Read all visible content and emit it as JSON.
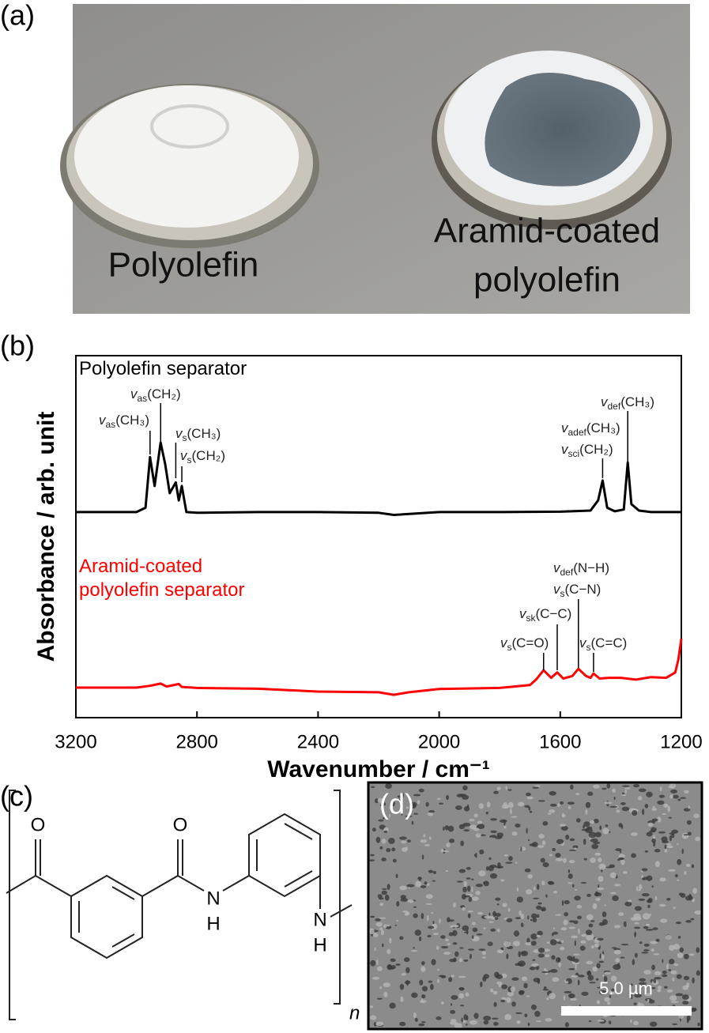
{
  "panel_a": {
    "label": "(a)",
    "captions": [
      "Polyolefin",
      "Aramid-coated",
      "polyolefin"
    ]
  },
  "chart_data": {
    "type": "line",
    "panel_label": "(b)",
    "xlabel": "Wavenumber / cm⁻¹",
    "ylabel": "Absorbance / arb. unit",
    "xlim": [
      3200,
      1200
    ],
    "xticks": [
      3200,
      2800,
      2400,
      2000,
      1600,
      1200
    ],
    "ylim": [
      0,
      100
    ],
    "series": [
      {
        "name": "Polyolefin separator",
        "color": "#000000",
        "x": [
          3200,
          3000,
          2970,
          2955,
          2940,
          2930,
          2920,
          2905,
          2890,
          2870,
          2860,
          2850,
          2835,
          2800,
          2600,
          2400,
          2200,
          2150,
          2000,
          1800,
          1600,
          1500,
          1475,
          1460,
          1445,
          1420,
          1390,
          1377,
          1365,
          1340,
          1300,
          1200
        ],
        "values": [
          56.8,
          56.8,
          58,
          72,
          64,
          70,
          76,
          70,
          62,
          65,
          60,
          64,
          56.8,
          56.6,
          56.8,
          56.8,
          56.6,
          56,
          56.8,
          56.8,
          56.9,
          57.2,
          60,
          65.5,
          58,
          57,
          57.5,
          70.5,
          59,
          57.2,
          56.8,
          56.8
        ]
      },
      {
        "name": "Aramid-coated polyolefin separator",
        "color": "#ff0000",
        "x": [
          3200,
          3000,
          2955,
          2920,
          2900,
          2860,
          2850,
          2800,
          2600,
          2400,
          2200,
          2150,
          2100,
          2000,
          1800,
          1700,
          1680,
          1655,
          1630,
          1610,
          1590,
          1560,
          1540,
          1515,
          1500,
          1490,
          1470,
          1440,
          1400,
          1350,
          1300,
          1250,
          1220,
          1210,
          1200
        ],
        "values": [
          8.3,
          8.3,
          8.8,
          9.4,
          8.6,
          9.3,
          8.5,
          8.2,
          8.0,
          7.2,
          7.0,
          6.3,
          7.0,
          7.9,
          8.2,
          9.0,
          10.5,
          13.1,
          11.0,
          12.5,
          10.8,
          11.5,
          13.5,
          11.5,
          11.0,
          12.2,
          10.8,
          11.0,
          11.0,
          10.5,
          11.2,
          11.0,
          12.5,
          16,
          21.8
        ]
      }
    ],
    "annotations": [
      {
        "x": 2955,
        "lines": [
          {
            "v": "v",
            "sub": "as",
            "rest": "(CH₃)"
          }
        ]
      },
      {
        "x": 2920,
        "lines": [
          {
            "v": "v",
            "sub": "as",
            "rest": "(CH₂)"
          }
        ]
      },
      {
        "x": 2870,
        "lines": [
          {
            "v": "v",
            "sub": "s",
            "rest": "(CH₃)"
          }
        ]
      },
      {
        "x": 2850,
        "lines": [
          {
            "v": "v",
            "sub": "s",
            "rest": "(CH₂)"
          }
        ]
      },
      {
        "x": 1460,
        "lines": [
          {
            "v": "v",
            "sub": "adef",
            "rest": "(CH₃)"
          },
          {
            "v": "v",
            "sub": "sci",
            "rest": "(CH₂)"
          }
        ]
      },
      {
        "x": 1377,
        "lines": [
          {
            "v": "v",
            "sub": "def",
            "rest": "(CH₃)"
          }
        ]
      },
      {
        "x": 1655,
        "lines": [
          {
            "v": "v",
            "sub": "s",
            "rest": "(C=O)"
          }
        ]
      },
      {
        "x": 1610,
        "lines": [
          {
            "v": "v",
            "sub": "sk",
            "rest": "(C−C)"
          }
        ]
      },
      {
        "x": 1540,
        "lines": [
          {
            "v": "v",
            "sub": "def",
            "rest": "(N−H)"
          },
          {
            "v": "v",
            "sub": "s",
            "rest": "(C−N)"
          }
        ]
      },
      {
        "x": 1490,
        "lines": [
          {
            "v": "v",
            "sub": "s",
            "rest": "(C=C)"
          }
        ]
      }
    ]
  },
  "panel_c": {
    "label": "(c)",
    "atoms": [
      "O",
      "O",
      "N",
      "H",
      "N",
      "H"
    ],
    "repeat": "n"
  },
  "panel_d": {
    "label": "(d)",
    "scale_bar": "5.0 µm"
  }
}
